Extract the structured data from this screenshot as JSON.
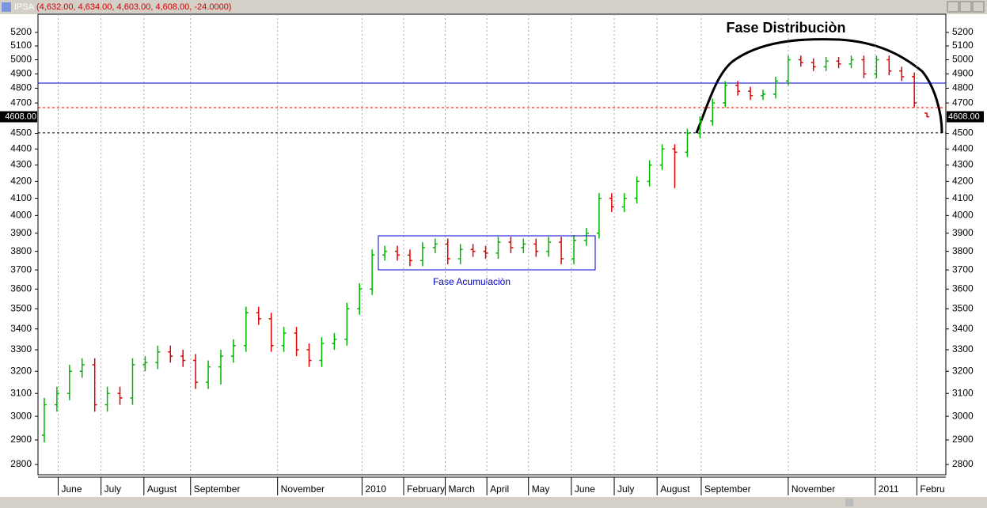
{
  "title_bar": {
    "symbol": "IPSA",
    "quote": "(4,632.00, 4,634.00, 4,603.00, 4,608.00, -24.0000)"
  },
  "chart_data": {
    "type": "ohlc",
    "open": [
      2920,
      3050,
      3100,
      3200,
      3230,
      3050,
      3100,
      3080,
      3230,
      3240,
      3290,
      3270,
      3250,
      3150,
      3220,
      3270,
      3320,
      3480,
      3450,
      3320,
      3380,
      3300,
      3250,
      3330,
      3350,
      3500,
      3600,
      3780,
      3800,
      3780,
      3750,
      3820,
      3840,
      3760,
      3810,
      3800,
      3790,
      3850,
      3820,
      3840,
      3800,
      3850,
      3760,
      3860,
      3900,
      4100,
      4050,
      4100,
      4200,
      4300,
      4400,
      4380,
      4500,
      4580,
      4700,
      4820,
      4780,
      4750,
      4760,
      4850,
      5000,
      4980,
      4950,
      4990,
      4970,
      5000,
      4900,
      5000,
      4920,
      4880,
      4632
    ],
    "high": [
      3080,
      3130,
      3230,
      3260,
      3260,
      3130,
      3130,
      3260,
      3270,
      3320,
      3320,
      3300,
      3280,
      3250,
      3300,
      3350,
      3510,
      3510,
      3480,
      3410,
      3410,
      3330,
      3360,
      3380,
      3530,
      3630,
      3810,
      3830,
      3830,
      3810,
      3850,
      3870,
      3870,
      3840,
      3840,
      3830,
      3880,
      3880,
      3870,
      3870,
      3880,
      3880,
      3890,
      3930,
      4130,
      4130,
      4130,
      4230,
      4330,
      4430,
      4430,
      4530,
      4610,
      4730,
      4850,
      4850,
      4810,
      4790,
      4880,
      5030,
      5030,
      5010,
      5020,
      5020,
      5030,
      5030,
      5030,
      5030,
      4950,
      4910,
      4634
    ],
    "low": [
      2890,
      3020,
      3070,
      3170,
      3020,
      3020,
      3050,
      3050,
      3200,
      3210,
      3240,
      3220,
      3120,
      3120,
      3140,
      3240,
      3290,
      3420,
      3290,
      3290,
      3270,
      3220,
      3220,
      3300,
      3320,
      3470,
      3570,
      3750,
      3750,
      3720,
      3720,
      3790,
      3730,
      3730,
      3770,
      3760,
      3760,
      3790,
      3790,
      3770,
      3770,
      3730,
      3730,
      3830,
      3870,
      4020,
      4020,
      4070,
      4170,
      4270,
      4160,
      4350,
      4470,
      4550,
      4670,
      4750,
      4720,
      4720,
      4730,
      4820,
      4950,
      4920,
      4920,
      4940,
      4940,
      4870,
      4870,
      4890,
      4850,
      4670,
      4603
    ],
    "close": [
      3050,
      3100,
      3200,
      3230,
      3050,
      3100,
      3080,
      3230,
      3240,
      3290,
      3270,
      3250,
      3150,
      3220,
      3270,
      3320,
      3480,
      3450,
      3320,
      3380,
      3300,
      3250,
      3330,
      3350,
      3500,
      3600,
      3780,
      3800,
      3780,
      3750,
      3820,
      3840,
      3760,
      3810,
      3800,
      3790,
      3850,
      3820,
      3840,
      3800,
      3850,
      3760,
      3860,
      3900,
      4100,
      4050,
      4100,
      4200,
      4300,
      4400,
      4380,
      4500,
      4580,
      4700,
      4820,
      4780,
      4750,
      4760,
      4850,
      5000,
      4980,
      4950,
      4990,
      4970,
      5000,
      4900,
      5000,
      4920,
      4880,
      4700,
      4608
    ],
    "up_color": "#00b400",
    "down_color": "#e00000",
    "log_scale": true,
    "ylim": [
      2759,
      5337
    ],
    "yticks": [
      2800,
      2900,
      3000,
      3100,
      3200,
      3300,
      3400,
      3500,
      3600,
      3700,
      3800,
      3900,
      4000,
      4100,
      4200,
      4300,
      4400,
      4500,
      4700,
      4800,
      4900,
      5000,
      5100,
      5200
    ],
    "xlim": [
      0,
      72
    ],
    "xticks": [
      {
        "value": 1.6,
        "label": "June"
      },
      {
        "value": 5.0,
        "label": "July"
      },
      {
        "value": 8.4,
        "label": "August"
      },
      {
        "value": 12.1,
        "label": "September"
      },
      {
        "value": 19.0,
        "label": "November"
      },
      {
        "value": 25.7,
        "label": "2010"
      },
      {
        "value": 29.0,
        "label": "February"
      },
      {
        "value": 32.3,
        "label": "March"
      },
      {
        "value": 35.6,
        "label": "April"
      },
      {
        "value": 38.9,
        "label": "May"
      },
      {
        "value": 42.3,
        "label": "June"
      },
      {
        "value": 45.7,
        "label": "July"
      },
      {
        "value": 49.1,
        "label": "August"
      },
      {
        "value": 52.6,
        "label": "September"
      },
      {
        "value": 59.5,
        "label": "November"
      },
      {
        "value": 66.4,
        "label": "2011"
      },
      {
        "value": 69.7,
        "label": "Febru"
      }
    ],
    "grid": true,
    "hlines": [
      {
        "value": 4836,
        "color": "#0000c8",
        "dash": false
      },
      {
        "value": 4669,
        "color": "#e00000",
        "dash": true
      },
      {
        "value": 4503,
        "color": "#000000",
        "dash": true
      }
    ],
    "last_price": {
      "value": 4608,
      "label": "4608.00"
    },
    "annotations": [
      "Fase Distribuciòn",
      "Fase Acumulaciòn"
    ]
  }
}
